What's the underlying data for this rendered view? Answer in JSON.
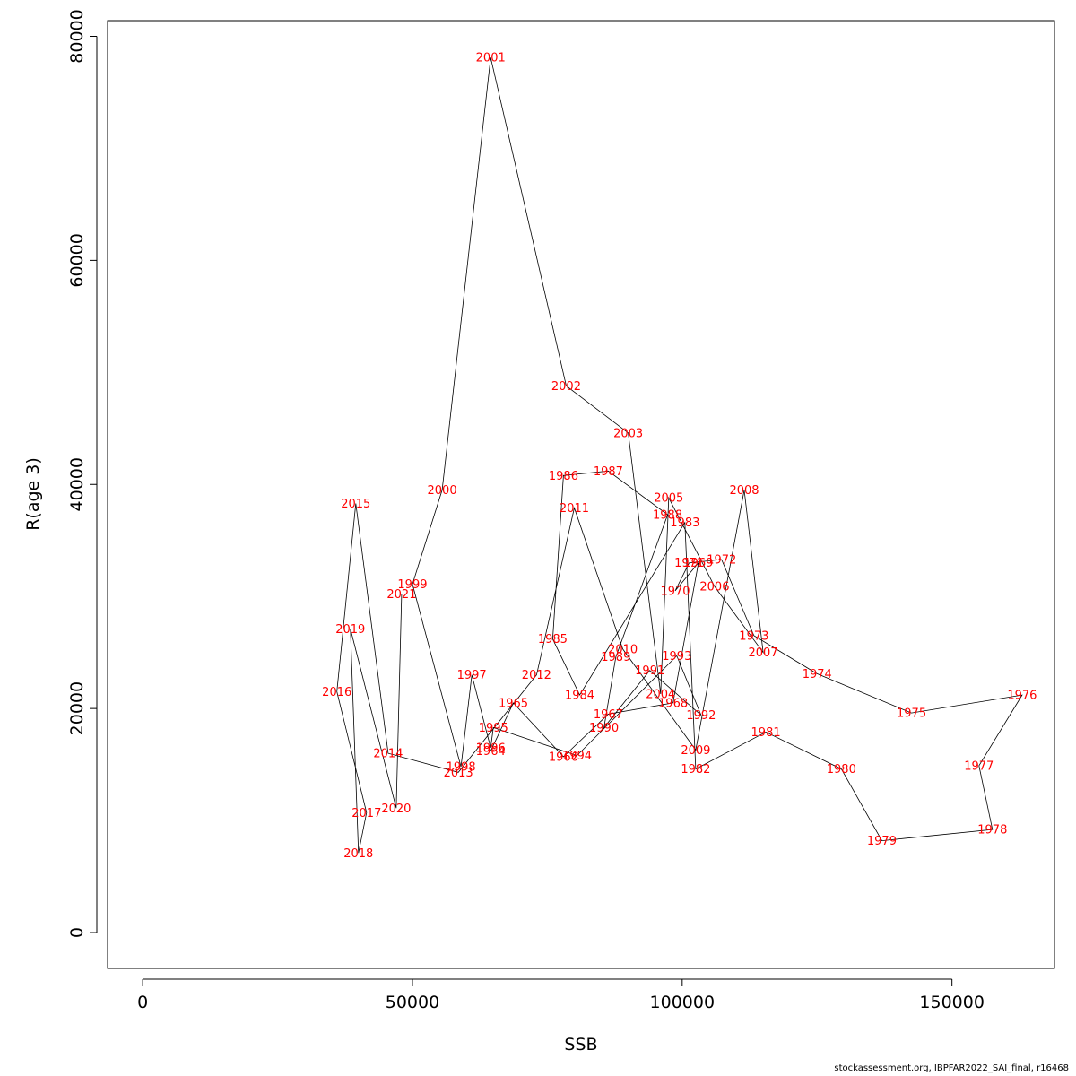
{
  "footer": "stockassessment.org, IBPFAR2022_SAI_final, r16468",
  "chart_data": {
    "type": "scatter",
    "connected": true,
    "xlabel": "SSB",
    "ylabel": "R(age 3)",
    "xlim": [
      -6500,
      169000
    ],
    "ylim": [
      -3200,
      81400
    ],
    "xticks": [
      0,
      50000,
      100000,
      150000
    ],
    "yticks": [
      0,
      20000,
      40000,
      60000,
      80000
    ],
    "grid": false,
    "line_color": "#000000",
    "label_color": "#ff0000",
    "points": [
      {
        "label": "1964",
        "x": 64500,
        "y": 16200
      },
      {
        "label": "1965",
        "x": 68700,
        "y": 20500
      },
      {
        "label": "1966",
        "x": 78000,
        "y": 15700
      },
      {
        "label": "1967",
        "x": 86300,
        "y": 19500
      },
      {
        "label": "1968",
        "x": 98300,
        "y": 20500
      },
      {
        "label": "1969",
        "x": 103000,
        "y": 33000
      },
      {
        "label": "1970",
        "x": 98700,
        "y": 30500
      },
      {
        "label": "1971",
        "x": 101300,
        "y": 33000
      },
      {
        "label": "1972",
        "x": 107300,
        "y": 33300
      },
      {
        "label": "1973",
        "x": 113300,
        "y": 26500
      },
      {
        "label": "1974",
        "x": 125000,
        "y": 23100
      },
      {
        "label": "1975",
        "x": 142500,
        "y": 19600
      },
      {
        "label": "1976",
        "x": 163000,
        "y": 21200
      },
      {
        "label": "1977",
        "x": 155000,
        "y": 14900
      },
      {
        "label": "1978",
        "x": 157500,
        "y": 9200
      },
      {
        "label": "1979",
        "x": 137000,
        "y": 8200
      },
      {
        "label": "1980",
        "x": 129500,
        "y": 14600
      },
      {
        "label": "1981",
        "x": 115500,
        "y": 17900
      },
      {
        "label": "1982",
        "x": 102500,
        "y": 14600
      },
      {
        "label": "1983",
        "x": 100500,
        "y": 36600
      },
      {
        "label": "1984",
        "x": 81000,
        "y": 21200
      },
      {
        "label": "1985",
        "x": 76000,
        "y": 26200
      },
      {
        "label": "1986",
        "x": 78000,
        "y": 40800
      },
      {
        "label": "1987",
        "x": 86300,
        "y": 41200
      },
      {
        "label": "1988",
        "x": 97300,
        "y": 37300
      },
      {
        "label": "1989",
        "x": 87700,
        "y": 24600
      },
      {
        "label": "1990",
        "x": 85500,
        "y": 18300
      },
      {
        "label": "1991",
        "x": 94000,
        "y": 23400
      },
      {
        "label": "1992",
        "x": 103500,
        "y": 19400
      },
      {
        "label": "1993",
        "x": 99000,
        "y": 24700
      },
      {
        "label": "1994",
        "x": 80500,
        "y": 15800
      },
      {
        "label": "1995",
        "x": 65000,
        "y": 18300
      },
      {
        "label": "1996",
        "x": 64500,
        "y": 16500
      },
      {
        "label": "1997",
        "x": 61000,
        "y": 23000
      },
      {
        "label": "1998",
        "x": 59000,
        "y": 14800
      },
      {
        "label": "1999",
        "x": 50000,
        "y": 31100
      },
      {
        "label": "2000",
        "x": 55500,
        "y": 39500
      },
      {
        "label": "2001",
        "x": 64500,
        "y": 78100
      },
      {
        "label": "2002",
        "x": 78500,
        "y": 48800
      },
      {
        "label": "2003",
        "x": 90000,
        "y": 44600
      },
      {
        "label": "2004",
        "x": 96000,
        "y": 21300
      },
      {
        "label": "2005",
        "x": 97500,
        "y": 38800
      },
      {
        "label": "2006",
        "x": 106000,
        "y": 30900
      },
      {
        "label": "2007",
        "x": 115000,
        "y": 25000
      },
      {
        "label": "2008",
        "x": 111500,
        "y": 39500
      },
      {
        "label": "2009",
        "x": 102500,
        "y": 16300
      },
      {
        "label": "2010",
        "x": 89000,
        "y": 25300
      },
      {
        "label": "2011",
        "x": 80000,
        "y": 37900
      },
      {
        "label": "2012",
        "x": 73000,
        "y": 23000
      },
      {
        "label": "2013",
        "x": 58500,
        "y": 14300
      },
      {
        "label": "2014",
        "x": 45500,
        "y": 16000
      },
      {
        "label": "2015",
        "x": 39500,
        "y": 38300
      },
      {
        "label": "2016",
        "x": 36000,
        "y": 21500
      },
      {
        "label": "2017",
        "x": 41500,
        "y": 10700
      },
      {
        "label": "2018",
        "x": 40000,
        "y": 7100
      },
      {
        "label": "2019",
        "x": 38500,
        "y": 27100
      },
      {
        "label": "2020",
        "x": 47000,
        "y": 11100
      },
      {
        "label": "2021",
        "x": 48000,
        "y": 30200
      }
    ]
  }
}
